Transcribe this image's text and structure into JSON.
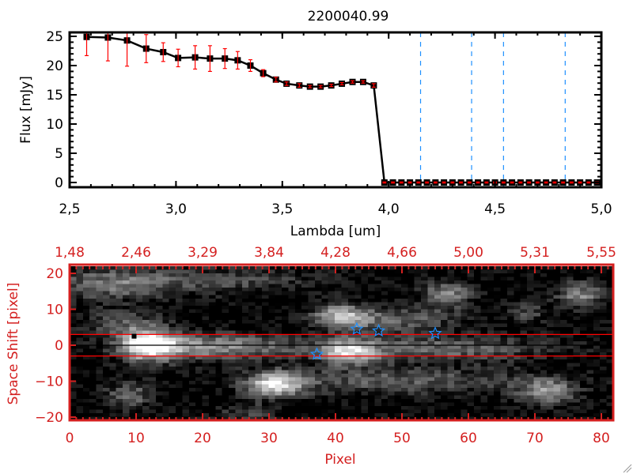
{
  "chart_data": [
    {
      "type": "line",
      "title": "2200040.99",
      "xlabel": "Lambda [um]",
      "ylabel": "Flux [mJy]",
      "xlim": [
        2.5,
        5.0
      ],
      "ylim": [
        -1,
        26
      ],
      "xticks": [
        "2,5",
        "3,0",
        "3,5",
        "4,0",
        "4,5",
        "5,0"
      ],
      "xtick_values": [
        2.5,
        3.0,
        3.5,
        4.0,
        4.5,
        5.0
      ],
      "yticks": [
        "0",
        "5",
        "10",
        "15",
        "20",
        "25"
      ],
      "ytick_values": [
        0,
        5,
        10,
        15,
        20,
        25
      ],
      "series": [
        {
          "name": "flux",
          "x": [
            2.58,
            2.68,
            2.77,
            2.86,
            2.94,
            3.01,
            3.09,
            3.16,
            3.23,
            3.29,
            3.35,
            3.41,
            3.47,
            3.52,
            3.58,
            3.63,
            3.68,
            3.73,
            3.78,
            3.83,
            3.88,
            3.93,
            3.98,
            4.02,
            4.06,
            4.1,
            4.14,
            4.18,
            4.22,
            4.26,
            4.3,
            4.34,
            4.38,
            4.42,
            4.46,
            4.5,
            4.54,
            4.58,
            4.62,
            4.66,
            4.7,
            4.74,
            4.78,
            4.82,
            4.86,
            4.9,
            4.94,
            4.98
          ],
          "y": [
            24.9,
            24.8,
            24.3,
            22.9,
            22.3,
            21.3,
            21.4,
            21.2,
            21.2,
            20.9,
            20.0,
            18.7,
            17.6,
            16.9,
            16.6,
            16.4,
            16.4,
            16.6,
            16.9,
            17.2,
            17.2,
            16.6,
            0,
            0,
            0,
            0,
            0,
            0,
            0,
            0,
            0,
            0,
            0,
            0,
            0,
            0,
            0,
            0,
            0,
            0,
            0,
            0,
            0,
            0,
            0,
            0,
            0,
            0
          ],
          "yerr": [
            3.2,
            4.0,
            4.4,
            2.4,
            1.6,
            1.5,
            2.0,
            2.2,
            1.7,
            1.5,
            1.0,
            0.6,
            0.4,
            0.3,
            0.3,
            0.2,
            0.2,
            0.2,
            0.2,
            0.2,
            0.2,
            0.3,
            0.1,
            0.1,
            0.1,
            0.1,
            0.1,
            0.1,
            0.1,
            0.1,
            0.1,
            0.1,
            0.1,
            0.1,
            0.1,
            0.1,
            0.1,
            0.1,
            0.1,
            0.1,
            0.1,
            0.1,
            0.1,
            0.1,
            0.1,
            0.1,
            0.1,
            0.1
          ],
          "color": "#000000",
          "errcolor": "#ff0000"
        }
      ],
      "vlines": [
        4.15,
        4.39,
        4.54,
        4.83
      ],
      "vline_color": "#1e90ff"
    },
    {
      "type": "heatmap",
      "xlabel": "Pixel",
      "ylabel": "Space Shift [pixel]",
      "xlim": [
        0,
        81.8
      ],
      "ylim": [
        -21,
        22
      ],
      "xticks": [
        "0",
        "10",
        "20",
        "30",
        "40",
        "50",
        "60",
        "70",
        "80"
      ],
      "xtick_values": [
        0,
        10,
        20,
        30,
        40,
        50,
        60,
        70,
        80
      ],
      "top_xticks": [
        "1,48",
        "2,46",
        "3,29",
        "3,84",
        "4,28",
        "4,66",
        "5,00",
        "5,31",
        "5,55"
      ],
      "yticks": [
        "20",
        "10",
        "0",
        "−10",
        "−20"
      ],
      "ytick_values": [
        20,
        10,
        0,
        -10,
        -20
      ],
      "axis_color": "#d42020",
      "hlines": [
        {
          "y": 3,
          "color": "#ff0000"
        },
        {
          "y": -3,
          "color": "#ff0000"
        },
        {
          "y": 0,
          "color": "#000000"
        }
      ],
      "stars": [
        {
          "x": 43.2,
          "y": 4.5
        },
        {
          "x": 46.5,
          "y": 4.0
        },
        {
          "x": 55.0,
          "y": 3.3
        },
        {
          "x": 37.2,
          "y": -2.5
        }
      ],
      "star_color": "#1e90ff",
      "marker": {
        "x": 9.7,
        "y": 2.5
      },
      "sources": [
        {
          "x": 12,
          "y": 0,
          "sx": 3,
          "sy": 3,
          "a": 1.0
        },
        {
          "x": 22,
          "y": -0.5,
          "sx": 8,
          "sy": 2.5,
          "a": 0.55
        },
        {
          "x": 42,
          "y": -2,
          "sx": 3,
          "sy": 2.5,
          "a": 0.7
        },
        {
          "x": 55,
          "y": -1,
          "sx": 12,
          "sy": 2.5,
          "a": 0.4
        },
        {
          "x": 31,
          "y": -11,
          "sx": 3,
          "sy": 2.5,
          "a": 0.8
        },
        {
          "x": 50,
          "y": -10,
          "sx": 14,
          "sy": 2.5,
          "a": 0.35
        },
        {
          "x": 72,
          "y": -13,
          "sx": 3,
          "sy": 2.5,
          "a": 0.55
        },
        {
          "x": 41,
          "y": 8,
          "sx": 3,
          "sy": 2.5,
          "a": 0.65
        },
        {
          "x": 50,
          "y": 7,
          "sx": 6,
          "sy": 2.5,
          "a": 0.35
        },
        {
          "x": 57,
          "y": 14,
          "sx": 2.5,
          "sy": 2.5,
          "a": 0.55
        },
        {
          "x": 77,
          "y": 14,
          "sx": 2.5,
          "sy": 2.5,
          "a": 0.5
        },
        {
          "x": 9,
          "y": -14,
          "sx": 2.5,
          "sy": 2.5,
          "a": 0.4
        },
        {
          "x": 6,
          "y": 17,
          "sx": 6,
          "sy": 3,
          "a": 0.4
        },
        {
          "x": 22,
          "y": 18,
          "sx": 10,
          "sy": 2.5,
          "a": 0.3
        },
        {
          "x": 8,
          "y": 6,
          "sx": 4,
          "sy": 3,
          "a": 0.3
        },
        {
          "x": 69,
          "y": 9,
          "sx": 2,
          "sy": 2,
          "a": 0.3
        },
        {
          "x": 27,
          "y": -19,
          "sx": 3,
          "sy": 2,
          "a": 0.25
        }
      ]
    }
  ]
}
